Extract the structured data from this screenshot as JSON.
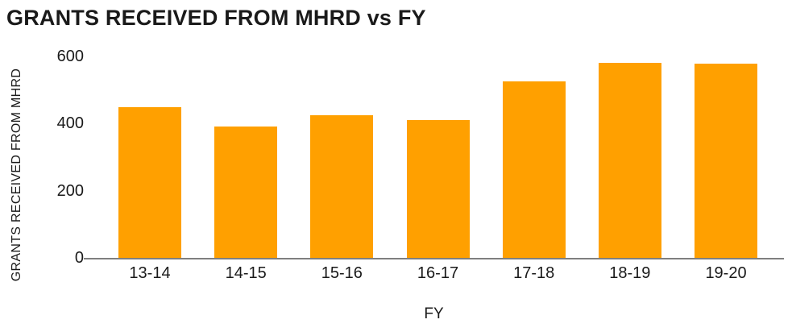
{
  "chart_data": {
    "type": "bar",
    "title": "GRANTS RECEIVED FROM MHRD vs FY",
    "xlabel": "FY",
    "ylabel": "GRANTS RECEIVED FROM MHRD",
    "categories": [
      "13-14",
      "14-15",
      "15-16",
      "16-17",
      "17-18",
      "18-19",
      "19-20"
    ],
    "values": [
      450,
      392,
      424,
      410,
      525,
      582,
      578
    ],
    "ylim": [
      0,
      600
    ],
    "yticks": [
      0,
      200,
      400,
      600
    ],
    "grid": false,
    "legend": false,
    "bar_color": "#FFA000",
    "axis_line_color": "#7F7F7F",
    "text_color": "#1A1A1A",
    "background_color": "#FFFFFF"
  }
}
